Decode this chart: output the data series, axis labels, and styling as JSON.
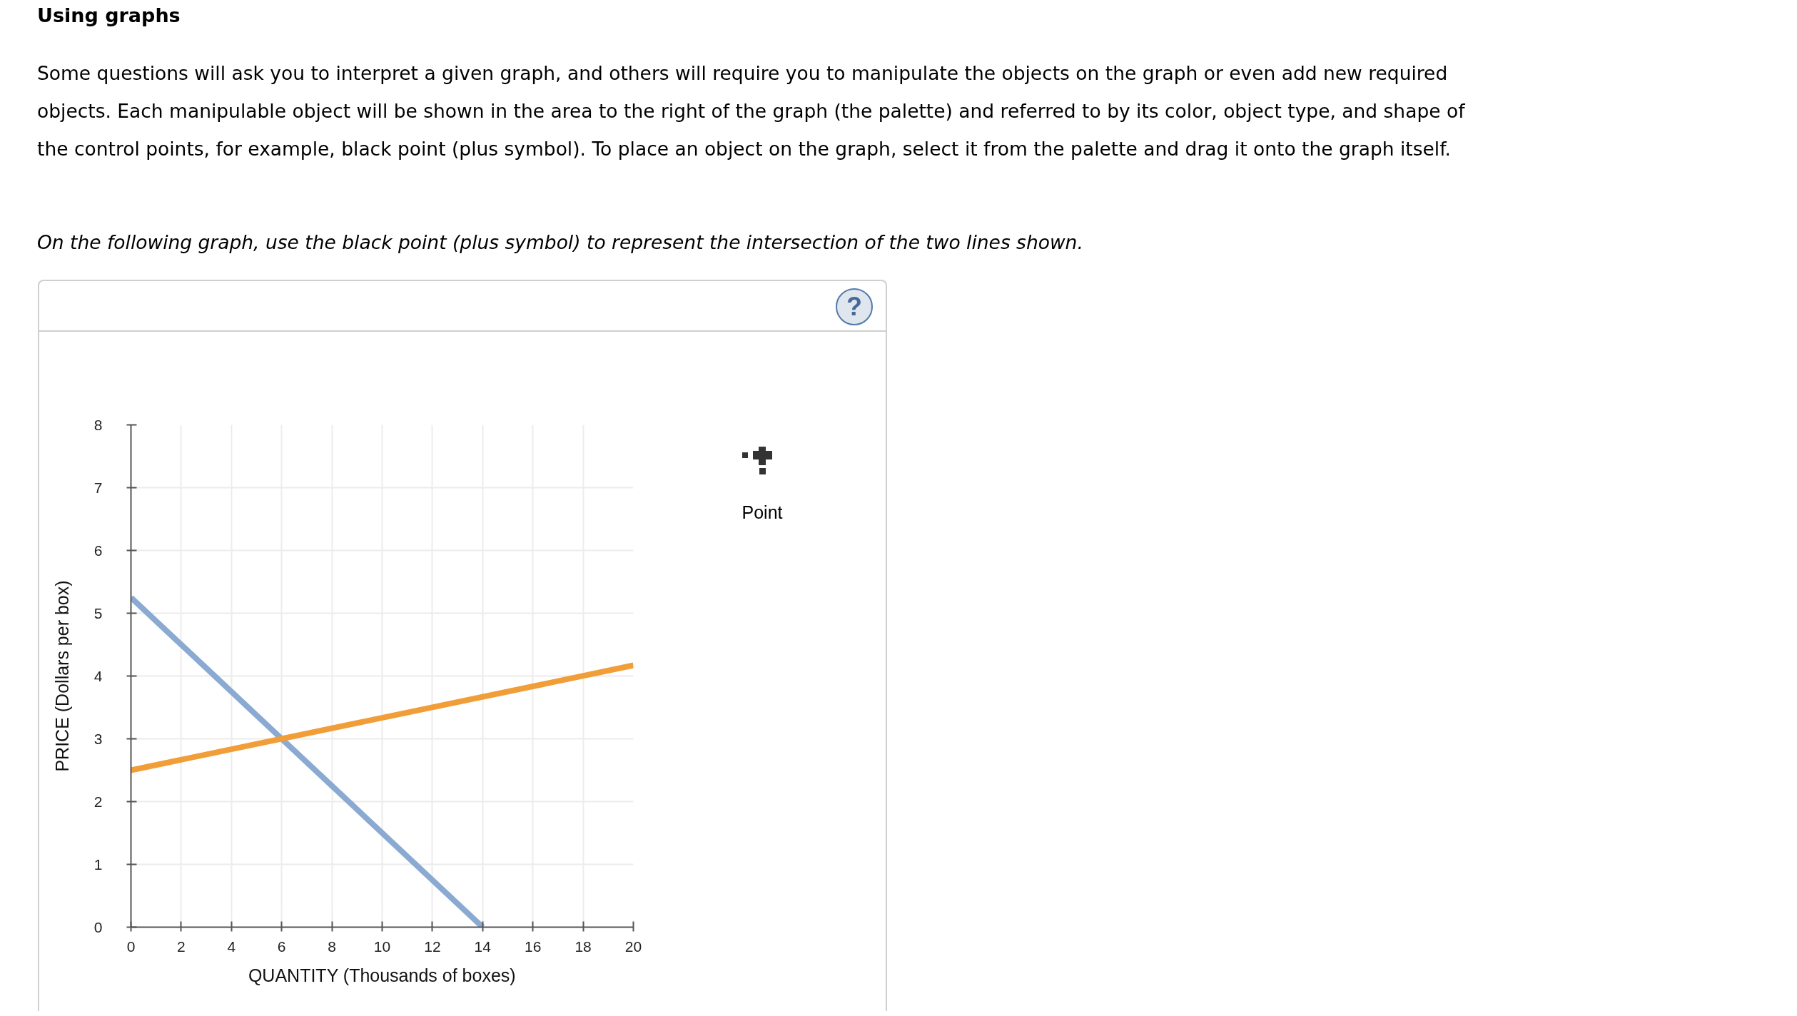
{
  "chart_data": {
    "type": "line",
    "title": "Using graphs",
    "subtitle": "Some questions will ask you to interpret a given graph, and others will require you to manipulate the objects on the graph or even add new required objects. Each manipulable object will be shown in the area to the right of the graph (the palette) and referred to by its color, object type, and shape of the control points, for example, black point (plus symbol). To place an object on the graph, select it from the palette and drag it onto the graph itself.",
    "annotations": [
      "On the following graph, use the black point (plus symbol) to represent the intersection of the two lines shown.",
      "?",
      "Point"
    ],
    "xlabel": "QUANTITY (Thousands of boxes)",
    "ylabel": "PRICE (Dollars per box)",
    "series": [
      {
        "color": "#8aaad2",
        "x": [
          0,
          14
        ],
        "values": [
          5.25,
          0
        ]
      },
      {
        "color": "#f19e38",
        "x": [
          0,
          20
        ],
        "values": [
          2.5,
          4.17
        ]
      }
    ],
    "xlim": [
      0,
      20
    ],
    "ylim": [
      0,
      8
    ],
    "xticks": [
      0,
      2,
      4,
      6,
      8,
      10,
      12,
      14,
      16,
      18,
      20
    ],
    "yticks": [
      0,
      1,
      2,
      3,
      4,
      5,
      6,
      7,
      8
    ],
    "grid": true
  }
}
